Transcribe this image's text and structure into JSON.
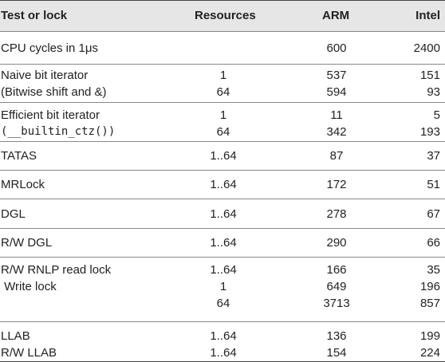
{
  "header": {
    "col1": "Test or lock",
    "col2": "Resources",
    "col3": "ARM",
    "col4": "Intel"
  },
  "groups": [
    {
      "rows": [
        {
          "name": "CPU cycles in 1μs",
          "res": "",
          "arm": "600",
          "intel": "2400"
        }
      ]
    },
    {
      "rows": [
        {
          "name": "Naive bit iterator",
          "res": "1",
          "arm": "537",
          "intel": "151"
        },
        {
          "name": "(Bitwise shift and &)",
          "res": "64",
          "arm": "594",
          "intel": "93"
        }
      ]
    },
    {
      "rows": [
        {
          "name": "Efficient bit iterator",
          "res": "1",
          "arm": "11",
          "intel": "5"
        },
        {
          "name": "(__builtin_ctz())",
          "res": "64",
          "arm": "342",
          "intel": "193"
        }
      ]
    },
    {
      "rows": [
        {
          "name": "TATAS",
          "res": "1..64",
          "arm": "87",
          "intel": "37"
        }
      ]
    },
    {
      "rows": [
        {
          "name": "MRLock",
          "res": "1..64",
          "arm": "172",
          "intel": "51"
        }
      ]
    },
    {
      "rows": [
        {
          "name": "DGL",
          "res": "1..64",
          "arm": "278",
          "intel": "67"
        }
      ]
    },
    {
      "rows": [
        {
          "name": "R/W DGL",
          "res": "1..64",
          "arm": "290",
          "intel": "66"
        }
      ]
    },
    {
      "rows": [
        {
          "name": "R/W RNLP read lock",
          "res": "1..64",
          "arm": "166",
          "intel": "35"
        },
        {
          "name": " Write lock",
          "res": "1",
          "arm": "649",
          "intel": "196"
        },
        {
          "name": "",
          "res": "64",
          "arm": "3713",
          "intel": "857"
        }
      ]
    },
    {
      "rows": [
        {
          "name": "LLAB",
          "res": "1..64",
          "arm": "136",
          "intel": "199"
        },
        {
          "name": "R/W LLAB",
          "res": "1..64",
          "arm": "154",
          "intel": "224"
        }
      ]
    }
  ]
}
